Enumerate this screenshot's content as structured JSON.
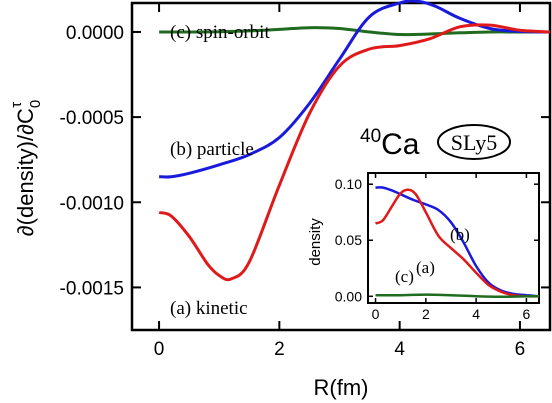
{
  "chart_data": [
    {
      "type": "line",
      "xlabel": "R(fm)",
      "ylabel_parts": {
        "main": "∂(density)/∂C",
        "sub": "0",
        "sup": "τ"
      },
      "xlim": [
        -0.45,
        6.5
      ],
      "ylim": [
        -0.00175,
        0.00017
      ],
      "xticks": [
        0,
        2,
        4,
        6
      ],
      "xtick_labels": [
        "0",
        "2",
        "4",
        "6"
      ],
      "yticks": [
        0.0,
        -0.0005,
        -0.001,
        -0.0015
      ],
      "ytick_labels": [
        "0.0000",
        "-0.0005",
        "-0.0010",
        "-0.0015"
      ],
      "grid": false,
      "series": [
        {
          "name": "(c) spin-orbit",
          "color": "#1f6b1f",
          "x": [
            0.0,
            0.5,
            1.0,
            1.5,
            2.0,
            2.5,
            3.0,
            3.5,
            4.0,
            4.5,
            5.0,
            5.5,
            6.0,
            6.5
          ],
          "y": [
            0.0,
            0.0,
            1e-06,
            6e-06,
            1.5e-05,
            2.5e-05,
            2e-05,
            0.0,
            -1.5e-05,
            -1.2e-05,
            -5e-06,
            0.0,
            0.0,
            0.0
          ]
        },
        {
          "name": "(b) particle",
          "color": "#1a1adc",
          "x": [
            0.0,
            0.2,
            0.5,
            1.0,
            1.5,
            2.0,
            2.5,
            3.0,
            3.5,
            4.0,
            4.3,
            4.6,
            5.0,
            5.5,
            6.0,
            6.5
          ],
          "y": [
            -0.00085,
            -0.00085,
            -0.00083,
            -0.00078,
            -0.00072,
            -0.00062,
            -0.00042,
            -0.00016,
            9e-05,
            0.00017,
            0.00018,
            0.00015,
            8e-05,
            2e-05,
            3e-06,
            0.0
          ]
        },
        {
          "name": "(a) kinetic",
          "color": "#e01a1a",
          "x": [
            0.0,
            0.2,
            0.5,
            0.8,
            1.0,
            1.2,
            1.5,
            2.0,
            2.5,
            3.0,
            3.5,
            4.0,
            4.5,
            5.0,
            5.5,
            6.0,
            6.5
          ],
          "y": [
            -0.00106,
            -0.00108,
            -0.0012,
            -0.00136,
            -0.00143,
            -0.00145,
            -0.00135,
            -0.0009,
            -0.00048,
            -0.0002,
            -0.0001,
            -8e-05,
            -4e-05,
            3e-05,
            4e-05,
            1e-05,
            0.0
          ]
        }
      ],
      "annotations": [
        {
          "text": "(c) spin-orbit",
          "series": "(c) spin-orbit"
        },
        {
          "text": "(b) particle",
          "series": "(b) particle"
        },
        {
          "text": "(a) kinetic",
          "series": "(a) kinetic"
        }
      ],
      "nucleus_label": {
        "mass_number": "40",
        "element": "Ca"
      },
      "force_badge": "SLy5"
    },
    {
      "type": "line",
      "inset": true,
      "ylabel": "density",
      "xlim": [
        -0.3,
        6.5
      ],
      "ylim": [
        -0.006,
        0.11
      ],
      "xticks": [
        0,
        2,
        4,
        6
      ],
      "xtick_labels": [
        "0",
        "2",
        "4",
        "6"
      ],
      "yticks": [
        0.0,
        0.05,
        0.1
      ],
      "ytick_labels": [
        "0.00",
        "0.05",
        "0.10"
      ],
      "series": [
        {
          "name": "(b)",
          "color": "#1a1adc",
          "x": [
            0.0,
            0.3,
            0.7,
            1.0,
            1.5,
            2.0,
            2.5,
            3.0,
            3.5,
            4.0,
            4.5,
            5.0,
            5.5,
            6.0,
            6.5
          ],
          "y": [
            0.097,
            0.097,
            0.094,
            0.091,
            0.086,
            0.082,
            0.077,
            0.066,
            0.048,
            0.027,
            0.012,
            0.005,
            0.002,
            0.001,
            0.0
          ]
        },
        {
          "name": "(a)",
          "color": "#e01a1a",
          "x": [
            0.0,
            0.3,
            0.7,
            1.0,
            1.3,
            1.6,
            2.0,
            2.5,
            3.0,
            3.5,
            4.0,
            4.5,
            5.0,
            5.5,
            6.0,
            6.5
          ],
          "y": [
            0.065,
            0.068,
            0.082,
            0.092,
            0.095,
            0.091,
            0.075,
            0.054,
            0.043,
            0.033,
            0.021,
            0.01,
            0.004,
            0.001,
            0.0,
            0.0
          ]
        },
        {
          "name": "(c)",
          "color": "#1f6b1f",
          "x": [
            0.0,
            1.0,
            2.0,
            3.0,
            4.0,
            5.0,
            6.0,
            6.5
          ],
          "y": [
            0.001,
            0.001,
            0.0015,
            0.001,
            0.0,
            -0.0005,
            0.0,
            0.0
          ]
        }
      ],
      "annotations": [
        {
          "text": "(b)",
          "series": "(b)"
        },
        {
          "text": "(a)",
          "series": "(a)"
        },
        {
          "text": "(c)",
          "series": "(c)"
        }
      ]
    }
  ]
}
